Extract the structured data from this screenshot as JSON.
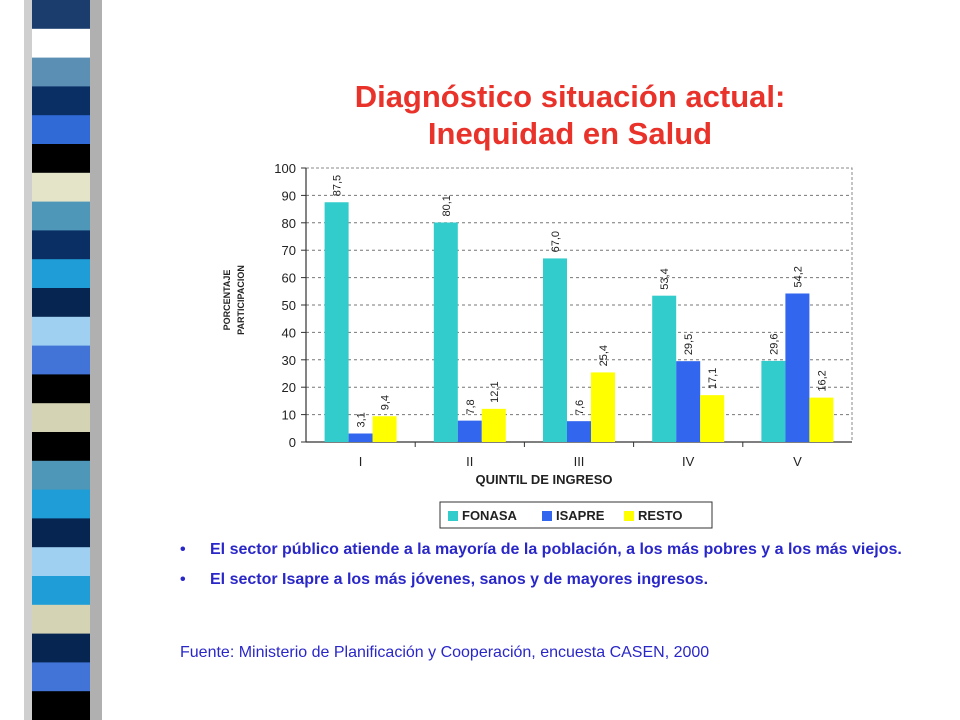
{
  "slide": {
    "title_line1": "Diagnóstico situación actual:",
    "title_line2": "Inequidad en Salud",
    "bullets": [
      "El sector público atiende a la mayoría de la población, a los más pobres y a los más viejos.",
      "El sector Isapre a los más jóvenes, sanos y de mayores ingresos."
    ],
    "bullet_symbol": "•",
    "source": "Fuente: Ministerio de Planificación y Cooperación, encuesta CASEN, 2000",
    "strip_colors": [
      "#1a3d6e",
      "#ffffff",
      "#5b8fb3",
      "#0a2f64",
      "#2f6ad6",
      "#000000",
      "#e4e4c8",
      "#4f97b8",
      "#0a2f64",
      "#1e9dd6",
      "#062550",
      "#9fd0f2",
      "#4174d6",
      "#000000",
      "#d4d4b4",
      "#000000",
      "#4f97b8",
      "#1e9dd6",
      "#062550",
      "#9fd0f2",
      "#1e9dd6",
      "#d4d4b4",
      "#062550",
      "#4174d6",
      "#000000"
    ]
  },
  "chart_data": {
    "type": "bar",
    "categories": [
      "I",
      "II",
      "III",
      "IV",
      "V"
    ],
    "series": [
      {
        "name": "FONASA",
        "color": "#33cccc",
        "values": [
          87.5,
          80.1,
          67.0,
          53.4,
          29.6
        ],
        "labels": [
          "87,5",
          "80,1",
          "67,0",
          "53,4",
          "29,6"
        ]
      },
      {
        "name": "ISAPRE",
        "color": "#3366ee",
        "values": [
          3.1,
          7.8,
          7.6,
          29.5,
          54.2
        ],
        "labels": [
          "3,1",
          "7,8",
          "7,6",
          "29,5",
          "54,2"
        ]
      },
      {
        "name": "RESTO",
        "color": "#ffff00",
        "values": [
          9.4,
          12.1,
          25.4,
          17.1,
          16.2
        ],
        "labels": [
          "9,4",
          "12,1",
          "25,4",
          "17,1",
          "16,2"
        ]
      }
    ],
    "xlabel": "QUINTIL DE INGRESO",
    "ylabel_line1": "PORCENTAJE",
    "ylabel_line2": "PARTICIPACION",
    "ylim": [
      0,
      100
    ],
    "yticks": [
      0,
      10,
      20,
      30,
      40,
      50,
      60,
      70,
      80,
      90,
      100
    ],
    "grid": true,
    "legend_position": "bottom"
  }
}
